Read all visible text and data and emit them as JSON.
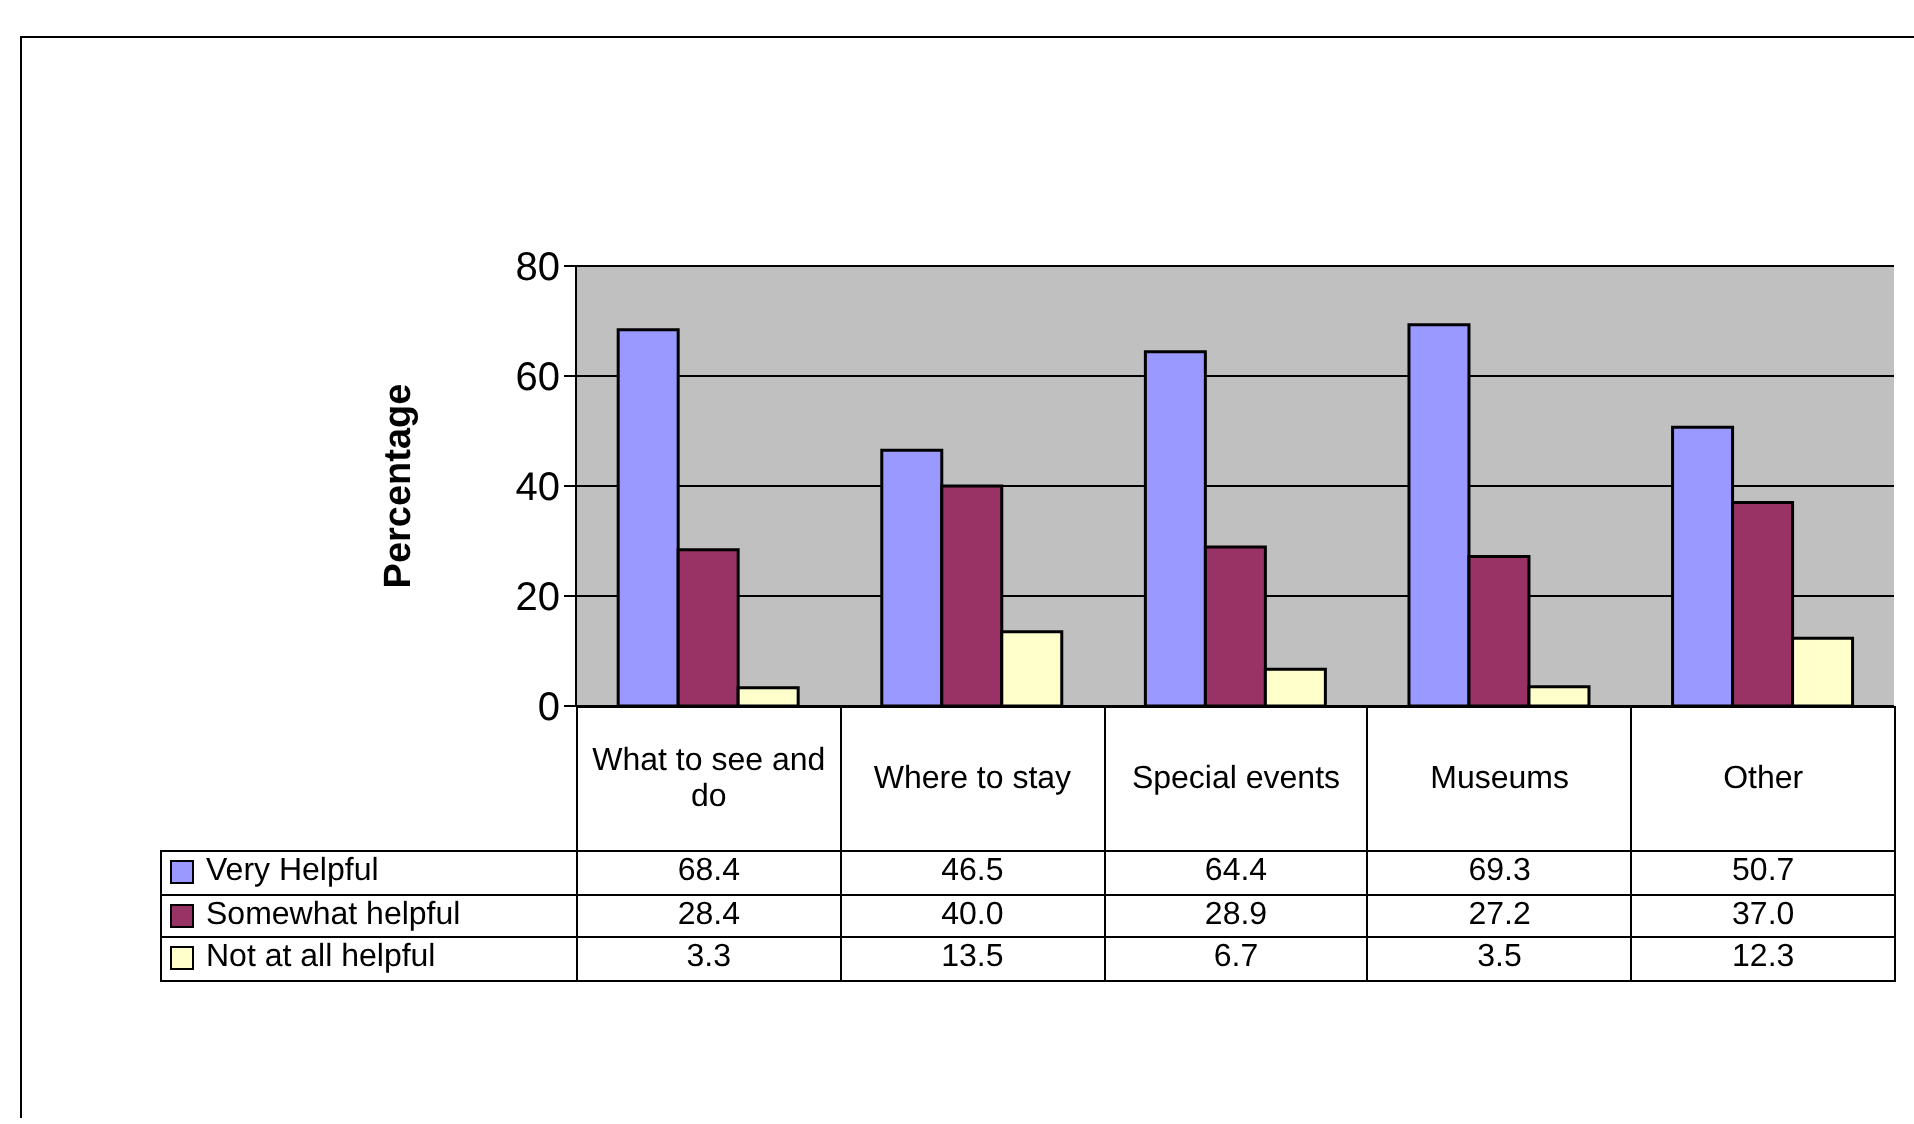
{
  "chart_data": {
    "type": "bar",
    "ylabel": "Percentage",
    "categories": [
      "What to see and do",
      "Where to stay",
      "Special events",
      "Museums",
      "Other"
    ],
    "series": [
      {
        "name": "Very Helpful",
        "color": "#9999ff",
        "values": [
          68.4,
          46.5,
          64.4,
          69.3,
          50.7
        ],
        "value_labels": [
          "68.4",
          "46.5",
          "64.4",
          "69.3",
          "50.7"
        ]
      },
      {
        "name": "Somewhat helpful",
        "color": "#993366",
        "values": [
          28.4,
          40.0,
          28.9,
          27.2,
          37.0
        ],
        "value_labels": [
          "28.4",
          "40.0",
          "28.9",
          "27.2",
          "37.0"
        ]
      },
      {
        "name": "Not at all helpful",
        "color": "#ffffcc",
        "values": [
          3.3,
          13.5,
          6.7,
          3.5,
          12.3
        ],
        "value_labels": [
          "3.3",
          "13.5",
          "6.7",
          "3.5",
          "12.3"
        ]
      }
    ],
    "ylim": [
      0,
      80
    ],
    "yticks": [
      0,
      20,
      40,
      60,
      80
    ],
    "grid": "y",
    "legend": "bottom left"
  }
}
